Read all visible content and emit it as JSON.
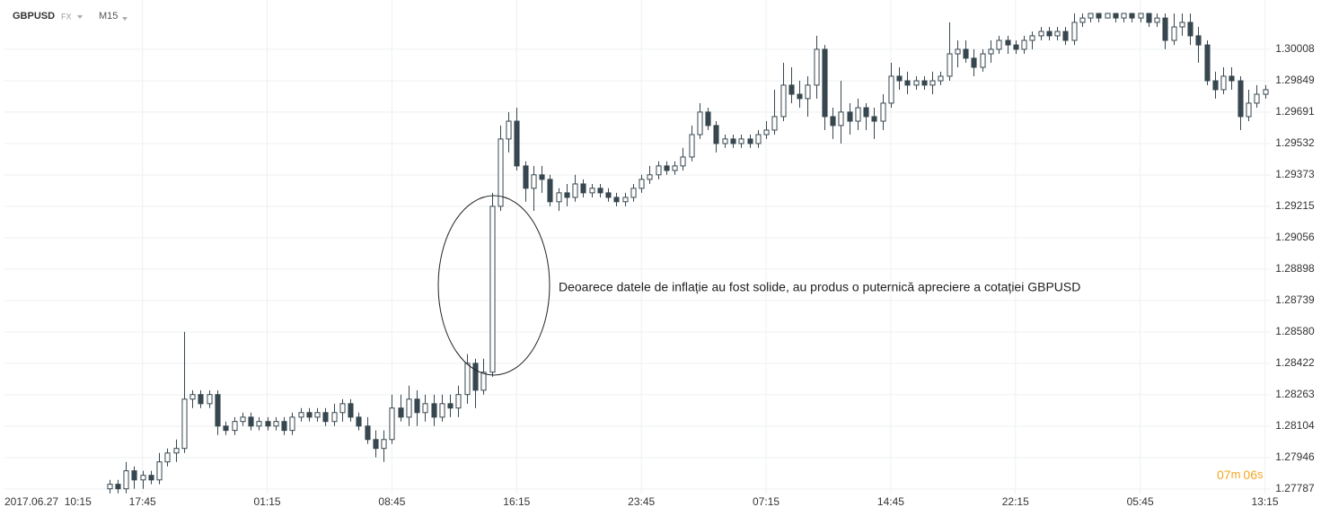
{
  "chart_data": {
    "type": "candlestick",
    "symbol": "GBPUSD",
    "market": "FX",
    "timeframe": "M15",
    "annotation": "Deoarece datele de inflație au fost solide, au produs o puternică apreciere a cotației GBPUSD",
    "date_label": "2017.06.27  10:15",
    "timer": [
      "07",
      "m",
      "06",
      "s"
    ],
    "color": "#37474f",
    "grid": true,
    "ylim": [
      1.27764,
      1.30257
    ],
    "yticks": [
      1.30008,
      1.29849,
      1.29691,
      1.29532,
      1.29373,
      1.29215,
      1.29056,
      1.28898,
      1.28739,
      {
        "value": 1.2858,
        "label": "1.28580"
      },
      1.28422,
      1.28263,
      1.28104,
      1.27946,
      1.27787
    ],
    "xlim": [
      -12.6,
      139.7
    ],
    "xticks": [
      {
        "value": 4,
        "label": "17:45"
      },
      {
        "value": 19,
        "label": "01:15"
      },
      {
        "value": 34,
        "label": "08:45"
      },
      {
        "value": 49,
        "label": "16:15"
      },
      {
        "value": 64,
        "label": "23:45"
      },
      {
        "value": 79,
        "label": "07:15"
      },
      {
        "value": 94,
        "label": "14:45"
      },
      {
        "value": 109,
        "label": "22:15"
      },
      {
        "value": 124,
        "label": "05:45"
      },
      {
        "value": 139,
        "label": "13:15"
      }
    ],
    "open": [
      1.27788,
      1.27811,
      1.27788,
      1.27879,
      1.27833,
      1.27856,
      1.27833,
      1.27924,
      1.27969,
      1.27992,
      1.28241,
      1.28264,
      1.28218,
      1.28264,
      1.28105,
      1.28083,
      1.28128,
      1.2815,
      1.28105,
      1.28128,
      1.28105,
      1.28128,
      1.28083,
      1.2815,
      1.28173,
      1.2815,
      1.28173,
      1.28128,
      1.28173,
      1.28218,
      1.2815,
      1.28105,
      1.28037,
      1.27992,
      1.28037,
      1.28196,
      1.2815,
      1.28241,
      1.28173,
      1.28218,
      1.2815,
      1.28218,
      1.28196,
      1.28264,
      1.28422,
      1.28286,
      1.28377,
      1.29215,
      1.29555,
      1.29645,
      1.29419,
      1.29306,
      1.29374,
      1.29351,
      1.29238,
      1.29283,
      1.2926,
      1.29328,
      1.29283,
      1.29306,
      1.29283,
      1.2926,
      1.29238,
      1.2926,
      1.29306,
      1.29351,
      1.29374,
      1.29419,
      1.29396,
      1.29419,
      1.29464,
      1.29577,
      1.29691,
      1.29623,
      1.29532,
      1.29555,
      1.29532,
      1.29555,
      1.29532,
      1.29577,
      1.296,
      1.29668,
      1.29827,
      1.29781,
      1.29759,
      1.29827,
      1.30008,
      1.29668,
      1.29623,
      1.29691,
      1.29645,
      1.29713,
      1.29668,
      1.29645,
      1.29736,
      1.29872,
      1.29849,
      1.29827,
      1.29849,
      1.29827,
      1.29849,
      1.29872,
      1.29985,
      1.30008,
      1.29963,
      1.29917,
      1.29985,
      1.30008,
      1.30053,
      1.3003,
      1.30008,
      1.30053,
      1.30076,
      1.30098,
      1.30076,
      1.30098,
      1.30053,
      1.30144,
      1.30166,
      1.30189,
      1.30166,
      1.30189,
      1.30166,
      1.30189,
      1.30166,
      1.30189,
      1.30144,
      1.30166,
      1.30053,
      1.30121,
      1.30144,
      1.30076,
      1.3003,
      1.29849,
      1.29804,
      1.29872,
      1.29849,
      1.29668,
      1.29736,
      1.29781
    ],
    "high": [
      1.27833,
      1.27833,
      1.27924,
      1.27901,
      1.27879,
      1.27879,
      1.27969,
      1.27992,
      1.28037,
      1.28581,
      1.28286,
      1.28286,
      1.28286,
      1.28286,
      1.28128,
      1.2815,
      1.28173,
      1.28173,
      1.2815,
      1.2815,
      1.2815,
      1.2815,
      1.28173,
      1.28196,
      1.28196,
      1.28196,
      1.28196,
      1.28218,
      1.28241,
      1.28241,
      1.28173,
      1.2815,
      1.28083,
      1.28083,
      1.28264,
      1.28264,
      1.28309,
      1.28286,
      1.28264,
      1.28264,
      1.28264,
      1.28264,
      1.28309,
      1.28468,
      1.28445,
      1.28445,
      1.29283,
      1.29623,
      1.29691,
      1.29713,
      1.29442,
      1.29419,
      1.29419,
      1.29374,
      1.29306,
      1.29328,
      1.29374,
      1.29351,
      1.29328,
      1.29328,
      1.29306,
      1.29283,
      1.29283,
      1.29328,
      1.29374,
      1.29419,
      1.29442,
      1.29442,
      1.29442,
      1.2951,
      1.29623,
      1.29736,
      1.29713,
      1.29645,
      1.29577,
      1.29577,
      1.29577,
      1.29577,
      1.296,
      1.29645,
      1.29804,
      1.2994,
      1.29917,
      1.29849,
      1.29872,
      1.30076,
      1.3003,
      1.29713,
      1.29849,
      1.29736,
      1.29759,
      1.29736,
      1.29713,
      1.29781,
      1.2994,
      1.29917,
      1.29895,
      1.29872,
      1.29872,
      1.29895,
      1.29895,
      1.30144,
      1.30053,
      1.30053,
      1.30008,
      1.30008,
      1.30053,
      1.30076,
      1.30076,
      1.30053,
      1.30076,
      1.30098,
      1.30121,
      1.30121,
      1.30121,
      1.30121,
      1.30189,
      1.30189,
      1.30189,
      1.30189,
      1.30189,
      1.30189,
      1.30189,
      1.30189,
      1.30189,
      1.30189,
      1.30189,
      1.30189,
      1.30189,
      1.30189,
      1.30189,
      1.30121,
      1.30053,
      1.29895,
      1.29917,
      1.29917,
      1.29872,
      1.29804,
      1.29827,
      1.29827
    ],
    "low": [
      1.27765,
      1.27765,
      1.27765,
      1.27788,
      1.27788,
      1.27811,
      1.27811,
      1.27901,
      1.27924,
      1.27969,
      1.28196,
      1.28196,
      1.28196,
      1.2806,
      1.2806,
      1.2806,
      1.28105,
      1.28083,
      1.28083,
      1.28083,
      1.28083,
      1.2806,
      1.2806,
      1.28128,
      1.28128,
      1.28128,
      1.28105,
      1.28105,
      1.28128,
      1.28128,
      1.28083,
      1.28015,
      1.27947,
      1.27924,
      1.28015,
      1.28128,
      1.28105,
      1.28105,
      1.28128,
      1.28105,
      1.28128,
      1.2815,
      1.2815,
      1.28218,
      1.28196,
      1.28264,
      1.28354,
      1.29192,
      1.29487,
      1.29396,
      1.29238,
      1.29192,
      1.29283,
      1.29215,
      1.29192,
      1.29215,
      1.29238,
      1.2926,
      1.2926,
      1.2926,
      1.29238,
      1.29215,
      1.29215,
      1.29238,
      1.29283,
      1.29328,
      1.29351,
      1.29374,
      1.29374,
      1.29396,
      1.29442,
      1.29555,
      1.296,
      1.29487,
      1.2951,
      1.2951,
      1.2951,
      1.2951,
      1.2951,
      1.29555,
      1.29577,
      1.29645,
      1.29736,
      1.29713,
      1.29668,
      1.29759,
      1.296,
      1.29555,
      1.29532,
      1.29577,
      1.296,
      1.296,
      1.29555,
      1.296,
      1.29713,
      1.29804,
      1.29781,
      1.29804,
      1.29804,
      1.29781,
      1.29827,
      1.29849,
      1.29917,
      1.2994,
      1.29872,
      1.29895,
      1.2994,
      1.29985,
      1.29985,
      1.29985,
      1.29985,
      1.30008,
      1.30053,
      1.30053,
      1.30053,
      1.3003,
      1.3003,
      1.30121,
      1.30144,
      1.30144,
      1.30166,
      1.30144,
      1.30144,
      1.30144,
      1.30144,
      1.30121,
      1.30121,
      1.30008,
      1.3003,
      1.30076,
      1.3003,
      1.2994,
      1.29827,
      1.29759,
      1.29781,
      1.29804,
      1.296,
      1.29645,
      1.29713,
      1.29759
    ],
    "close": [
      1.27811,
      1.27788,
      1.27879,
      1.27833,
      1.27856,
      1.27833,
      1.27924,
      1.27969,
      1.27992,
      1.28241,
      1.28264,
      1.28218,
      1.28264,
      1.28105,
      1.28083,
      1.28128,
      1.2815,
      1.28105,
      1.28128,
      1.28105,
      1.28128,
      1.28083,
      1.2815,
      1.28173,
      1.2815,
      1.28173,
      1.28128,
      1.28173,
      1.28218,
      1.2815,
      1.28105,
      1.28037,
      1.27992,
      1.28037,
      1.28196,
      1.2815,
      1.28241,
      1.28173,
      1.28218,
      1.2815,
      1.28218,
      1.28196,
      1.28264,
      1.28422,
      1.28286,
      1.28377,
      1.29215,
      1.29555,
      1.29645,
      1.29419,
      1.29306,
      1.29374,
      1.29351,
      1.29238,
      1.29283,
      1.2926,
      1.29328,
      1.29283,
      1.29306,
      1.29283,
      1.2926,
      1.29238,
      1.2926,
      1.29306,
      1.29351,
      1.29374,
      1.29419,
      1.29396,
      1.29419,
      1.29464,
      1.29577,
      1.29691,
      1.29623,
      1.29532,
      1.29555,
      1.29532,
      1.29555,
      1.29532,
      1.29577,
      1.296,
      1.29668,
      1.29827,
      1.29781,
      1.29759,
      1.29827,
      1.30008,
      1.29668,
      1.29623,
      1.29691,
      1.29645,
      1.29713,
      1.29668,
      1.29645,
      1.29736,
      1.29872,
      1.29849,
      1.29827,
      1.29849,
      1.29827,
      1.29849,
      1.29872,
      1.29985,
      1.30008,
      1.29963,
      1.29917,
      1.29985,
      1.30008,
      1.30053,
      1.3003,
      1.30008,
      1.30053,
      1.30076,
      1.30098,
      1.30076,
      1.30098,
      1.30053,
      1.30144,
      1.30166,
      1.30189,
      1.30166,
      1.30189,
      1.30166,
      1.30189,
      1.30166,
      1.30189,
      1.30144,
      1.30166,
      1.30053,
      1.30121,
      1.30144,
      1.30076,
      1.3003,
      1.29849,
      1.29804,
      1.29872,
      1.29849,
      1.29668,
      1.29736,
      1.29781,
      1.29804
    ]
  }
}
